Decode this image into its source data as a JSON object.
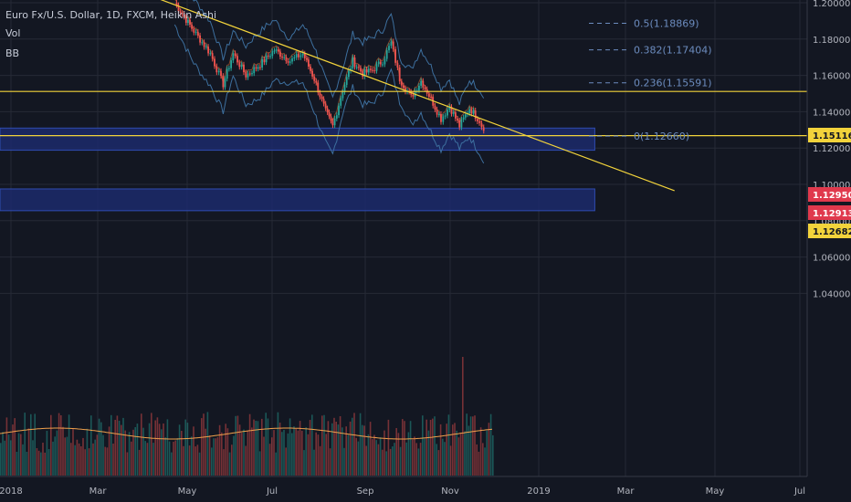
{
  "legend": {
    "title": "Euro Fx/U.S. Dollar, 1D, FXCM, Heikin Ashi",
    "vol": "Vol",
    "bb": "BB"
  },
  "price_axis": {
    "ticks": [
      "1.20000",
      "1.18000",
      "1.16000",
      "1.14000",
      "1.12000",
      "1.10000",
      "1.08000",
      "1.06000",
      "1.04000"
    ]
  },
  "time_axis": {
    "ticks": [
      "2018",
      "Mar",
      "May",
      "Jul",
      "Sep",
      "Nov",
      "2019",
      "Mar",
      "May",
      "Jul"
    ]
  },
  "fib": [
    {
      "label": "0.5(1.18869)",
      "value": 1.18869
    },
    {
      "label": "0.382(1.17404)",
      "value": 1.17404
    },
    {
      "label": "0.236(1.15591)",
      "value": 1.15591
    },
    {
      "label": "0(1.12660)",
      "value": 1.1266
    }
  ],
  "price_badges": [
    {
      "text": "1.15116",
      "value": 1.15116,
      "bg": "#f2d33b",
      "fg": "#131722"
    },
    {
      "text": "1.12950",
      "value": 1.1295,
      "bg": "#e0394d",
      "fg": "#ffffff"
    },
    {
      "text": "1.12913",
      "value": 1.12913,
      "bg": "#e0394d",
      "fg": "#ffffff"
    },
    {
      "text": "1.12682",
      "value": 1.12682,
      "bg": "#f2d33b",
      "fg": "#131722"
    }
  ],
  "chart_data": {
    "type": "candlestick",
    "symbol": "Euro Fx/U.S. Dollar",
    "interval": "1D",
    "source": "FXCM",
    "style": "Heikin Ashi",
    "ylim": [
      1.027,
      1.202
    ],
    "grid": true,
    "colors": {
      "up": "#26a69a",
      "down": "#ef5350",
      "level": "#f2d33b",
      "zone": "#1c2a6b",
      "bb": "#3d6f9e",
      "vol_ma": "#f0a04b"
    },
    "candles": [
      {
        "date": "2018-04-26",
        "close": 1.2
      },
      {
        "date": "2018-05-08",
        "close": 1.186
      },
      {
        "date": "2018-05-21",
        "close": 1.172
      },
      {
        "date": "2018-05-30",
        "close": 1.155
      },
      {
        "date": "2018-06-06",
        "close": 1.172
      },
      {
        "date": "2018-06-15",
        "close": 1.16
      },
      {
        "date": "2018-06-25",
        "close": 1.166
      },
      {
        "date": "2018-07-05",
        "close": 1.174
      },
      {
        "date": "2018-07-16",
        "close": 1.168
      },
      {
        "date": "2018-07-25",
        "close": 1.172
      },
      {
        "date": "2018-08-02",
        "close": 1.158
      },
      {
        "date": "2018-08-10",
        "close": 1.14
      },
      {
        "date": "2018-08-15",
        "close": 1.132
      },
      {
        "date": "2018-08-22",
        "close": 1.152
      },
      {
        "date": "2018-08-29",
        "close": 1.168
      },
      {
        "date": "2018-09-05",
        "close": 1.161
      },
      {
        "date": "2018-09-12",
        "close": 1.163
      },
      {
        "date": "2018-09-19",
        "close": 1.168
      },
      {
        "date": "2018-09-25",
        "close": 1.178
      },
      {
        "date": "2018-10-01",
        "close": 1.158
      },
      {
        "date": "2018-10-09",
        "close": 1.148
      },
      {
        "date": "2018-10-16",
        "close": 1.157
      },
      {
        "date": "2018-10-23",
        "close": 1.147
      },
      {
        "date": "2018-10-30",
        "close": 1.136
      },
      {
        "date": "2018-11-05",
        "close": 1.143
      },
      {
        "date": "2018-11-12",
        "close": 1.132
      },
      {
        "date": "2018-11-19",
        "close": 1.142
      },
      {
        "date": "2018-11-26",
        "close": 1.135
      },
      {
        "date": "2018-11-29",
        "close": 1.1295
      }
    ],
    "horizontal_levels": [
      1.15116,
      1.12682
    ],
    "zones": [
      {
        "from": 1.1188,
        "to": 1.131,
        "end_date": "2019-02-15"
      },
      {
        "from": 1.0855,
        "to": 1.0975,
        "end_date": "2019-02-15"
      }
    ],
    "trendline": {
      "from": {
        "date": "2018-04-05",
        "price": 1.205
      },
      "to": {
        "date": "2019-04-12",
        "price": 1.0965
      }
    },
    "fib_levels": [
      0.5,
      0.382,
      0.236,
      0
    ],
    "volume": {
      "peak_date": "2018-11-14"
    }
  }
}
